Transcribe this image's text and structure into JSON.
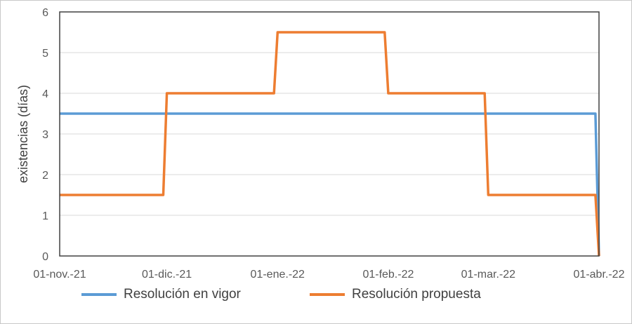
{
  "chart_data": {
    "type": "line",
    "title": "",
    "xlabel": "",
    "ylabel": "existencias (días)",
    "ylim": [
      0,
      6
    ],
    "yticks": [
      "0",
      "1",
      "2",
      "3",
      "4",
      "5",
      "6"
    ],
    "xlim": [
      "2021-11-01",
      "2022-04-01"
    ],
    "xtick_labels": [
      "01-nov.-21",
      "01-dic.-21",
      "01-ene.-22",
      "01-feb.-22",
      "01-mar.-22",
      "01-abr.-22"
    ],
    "xtick_dates": [
      "2021-11-01",
      "2021-12-01",
      "2022-01-01",
      "2022-02-01",
      "2022-03-01",
      "2022-04-01"
    ],
    "grid": "horizontal",
    "legend": "bottom",
    "series": [
      {
        "name": "Resolución en vigor",
        "color": "#5b9bd5",
        "points": [
          [
            "2021-11-01",
            3.5
          ],
          [
            "2022-03-31",
            3.5
          ],
          [
            "2022-04-01",
            0
          ]
        ]
      },
      {
        "name": "Resolución propuesta",
        "color": "#ed7d31",
        "points": [
          [
            "2021-11-01",
            1.5
          ],
          [
            "2021-11-30",
            1.5
          ],
          [
            "2021-12-01",
            4
          ],
          [
            "2021-12-31",
            4
          ],
          [
            "2022-01-01",
            5.5
          ],
          [
            "2022-01-31",
            5.5
          ],
          [
            "2022-02-01",
            4
          ],
          [
            "2022-02-28",
            4
          ],
          [
            "2022-03-01",
            1.5
          ],
          [
            "2022-03-31",
            1.5
          ],
          [
            "2022-04-01",
            0
          ]
        ]
      }
    ]
  }
}
